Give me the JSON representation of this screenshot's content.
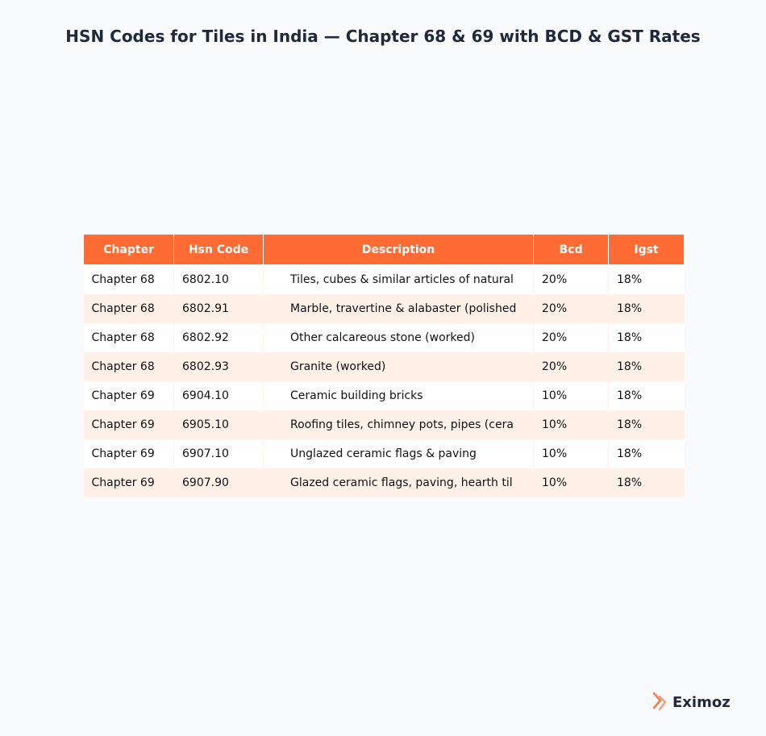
{
  "title": "HSN Codes for Tiles in India — Chapter 68 & 69 with BCD & GST Rates",
  "colors": {
    "header_bg": "#ff6b35",
    "row_alt_bg": "#fff0e8",
    "title_color": "#1e293b"
  },
  "chart_data": {
    "type": "table",
    "columns": [
      "Chapter",
      "Hsn Code",
      "Description",
      "Bcd",
      "Igst"
    ],
    "rows": [
      [
        "Chapter 68",
        "6802.10",
        "Tiles, cubes & similar articles of natural",
        "20%",
        "18%"
      ],
      [
        "Chapter 68",
        "6802.91",
        "Marble, travertine & alabaster (polished",
        "20%",
        "18%"
      ],
      [
        "Chapter 68",
        "6802.92",
        "Other calcareous stone (worked)",
        "20%",
        "18%"
      ],
      [
        "Chapter 68",
        "6802.93",
        "Granite (worked)",
        "20%",
        "18%"
      ],
      [
        "Chapter 69",
        "6904.10",
        "Ceramic building bricks",
        "10%",
        "18%"
      ],
      [
        "Chapter 69",
        "6905.10",
        "Roofing tiles, chimney pots, pipes (cera",
        "10%",
        "18%"
      ],
      [
        "Chapter 69",
        "6907.10",
        "Unglazed ceramic flags & paving",
        "10%",
        "18%"
      ],
      [
        "Chapter 69",
        "6907.90",
        "Glazed ceramic flags, paving, hearth til",
        "10%",
        "18%"
      ]
    ]
  },
  "brand": {
    "name": "Eximoz",
    "icon": "eximoz-logo-icon"
  }
}
